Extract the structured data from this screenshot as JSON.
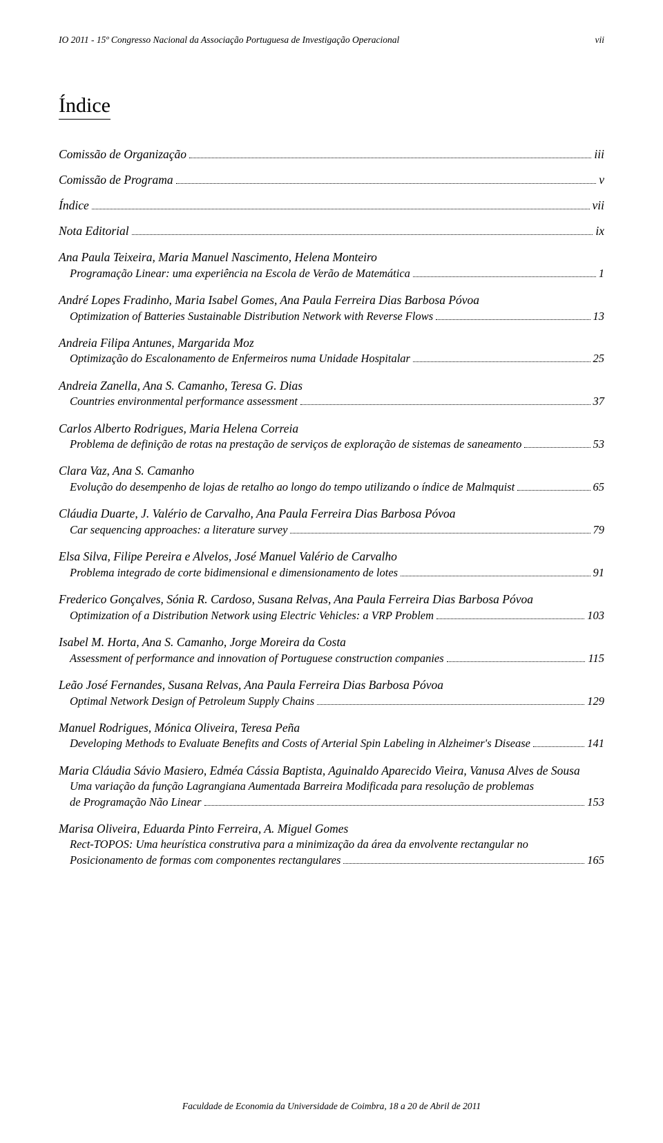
{
  "header": {
    "left": "IO 2011 - 15º Congresso Nacional da Associação Portuguesa de Investigação Operacional",
    "right": "vii"
  },
  "title": "Índice",
  "front_matter": [
    {
      "label": "Comissão de Organização",
      "page": "iii"
    },
    {
      "label": "Comissão de Programa",
      "page": "v"
    },
    {
      "label": "Índice",
      "page": "vii"
    },
    {
      "label": "Nota Editorial",
      "page": "ix"
    }
  ],
  "entries": [
    {
      "authors": "Ana Paula Teixeira, Maria Manuel Nascimento, Helena Monteiro",
      "title_pre": "",
      "title_last": "Programação Linear: uma experiência na Escola de Verão de Matemática",
      "page": "1"
    },
    {
      "authors": "André Lopes Fradinho, Maria Isabel Gomes, Ana Paula Ferreira Dias Barbosa Póvoa",
      "title_pre": "",
      "title_last": "Optimization of Batteries Sustainable Distribution Network with Reverse Flows",
      "page": "13"
    },
    {
      "authors": "Andreia Filipa Antunes, Margarida Moz",
      "title_pre": "",
      "title_last": "Optimização do Escalonamento de Enfermeiros numa Unidade Hospitalar",
      "page": "25"
    },
    {
      "authors": "Andreia Zanella, Ana S. Camanho, Teresa G. Dias",
      "title_pre": "",
      "title_last": "Countries environmental performance assessment",
      "page": "37"
    },
    {
      "authors": "Carlos Alberto Rodrigues, Maria Helena Correia",
      "title_pre": "",
      "title_last": "Problema de definição de rotas na prestação de serviços de exploração de sistemas de saneamento",
      "page": "53"
    },
    {
      "authors": "Clara Vaz, Ana S. Camanho",
      "title_pre": "",
      "title_last": "Evolução do desempenho de lojas de retalho ao longo do tempo utilizando o índice de Malmquist",
      "page": "65"
    },
    {
      "authors": "Cláudia Duarte, J. Valério de Carvalho, Ana Paula Ferreira Dias Barbosa Póvoa",
      "title_pre": "",
      "title_last": "Car sequencing approaches: a literature survey",
      "page": "79"
    },
    {
      "authors": "Elsa Silva, Filipe Pereira e Alvelos, José Manuel Valério de Carvalho",
      "title_pre": "",
      "title_last": "Problema integrado de corte bidimensional e dimensionamento de lotes",
      "page": "91"
    },
    {
      "authors": "Frederico Gonçalves, Sónia R. Cardoso, Susana Relvas, Ana Paula Ferreira Dias Barbosa Póvoa",
      "title_pre": "",
      "title_last": "Optimization of a Distribution Network using Electric Vehicles: a VRP Problem",
      "page": "103"
    },
    {
      "authors": "Isabel M. Horta, Ana S. Camanho, Jorge Moreira da Costa",
      "title_pre": "",
      "title_last": "Assessment of performance and innovation of Portuguese construction companies",
      "page": "115"
    },
    {
      "authors": "Leão José Fernandes, Susana Relvas, Ana Paula Ferreira Dias Barbosa Póvoa",
      "title_pre": "",
      "title_last": "Optimal Network Design of Petroleum Supply Chains",
      "page": "129"
    },
    {
      "authors": "Manuel Rodrigues, Mónica Oliveira, Teresa Peña",
      "title_pre": "",
      "title_last": "Developing Methods to Evaluate Benefits and Costs of Arterial Spin Labeling in Alzheimer's Disease",
      "page": "141"
    },
    {
      "authors": "Maria Cláudia Sávio Masiero, Edméa Cássia Baptista, Aguinaldo Aparecido Vieira, Vanusa Alves de Sousa",
      "title_pre": "Uma variação da função Lagrangiana Aumentada Barreira Modificada para resolução de problemas",
      "title_last": "de Programação Não Linear",
      "page": "153"
    },
    {
      "authors": "Marisa Oliveira, Eduarda Pinto Ferreira, A. Miguel Gomes",
      "title_pre": "Rect-TOPOS: Uma heurística construtiva para a minimização da área da envolvente rectangular no",
      "title_last": "Posicionamento de formas com componentes rectangulares",
      "page": "165"
    }
  ],
  "footer": "Faculdade de Economia da Universidade de Coimbra, 18 a 20 de Abril de 2011",
  "colors": {
    "text": "#000000",
    "background": "#ffffff"
  },
  "typography": {
    "body_font": "Times New Roman",
    "header_fontsize_pt": 10,
    "title_fontsize_pt": 22,
    "author_fontsize_pt": 13,
    "entry_fontsize_pt": 12.5,
    "footer_fontsize_pt": 10
  }
}
